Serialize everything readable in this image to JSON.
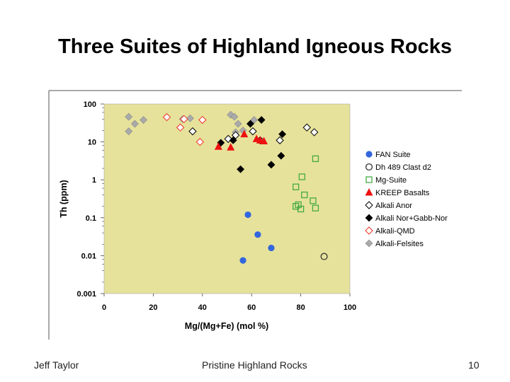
{
  "slide": {
    "title": "Three Suites of Highland Igneous Rocks",
    "footer_left": "Jeff Taylor",
    "footer_center": "Pristine Highland Rocks",
    "footer_right": "10"
  },
  "colors": {
    "plot_background": "#E6E29B",
    "blue": "#3366DD",
    "green": "#44AA44",
    "red": "#EE1111",
    "gray": "#AAAAAA",
    "black": "#000000"
  },
  "chart_data": {
    "type": "scatter",
    "xlabel": "Mg/(Mg+Fe) (mol %)",
    "ylabel": "Th (ppm)",
    "xlim": [
      0,
      100
    ],
    "ylim": [
      0.001,
      100
    ],
    "y_scale": "log",
    "x_ticks": [
      "0",
      "20",
      "40",
      "60",
      "80",
      "100"
    ],
    "y_ticks": [
      "100",
      "10",
      "1",
      "0.1",
      "0.01",
      "0.001"
    ],
    "grid": false,
    "legend_position": "right",
    "series": [
      {
        "name": "FAN Suite",
        "marker": "circle-filled",
        "color": "#3366DD",
        "points": [
          [
            58.5,
            0.12
          ],
          [
            62.5,
            0.036
          ],
          [
            68,
            0.016
          ],
          [
            56.5,
            0.0075
          ]
        ]
      },
      {
        "name": "Dh 489 Clast d2",
        "marker": "circle-open",
        "color": "#333333",
        "points": [
          [
            89.5,
            0.0095
          ]
        ]
      },
      {
        "name": "Mg-Suite",
        "marker": "square-open",
        "color": "#44AA44",
        "points": [
          [
            86,
            3.6
          ],
          [
            80.5,
            1.2
          ],
          [
            78,
            0.65
          ],
          [
            81.5,
            0.4
          ],
          [
            86,
            0.18
          ],
          [
            80,
            0.17
          ],
          [
            78,
            0.2
          ],
          [
            85,
            0.28
          ],
          [
            79,
            0.22
          ]
        ]
      },
      {
        "name": "KREEP Basalts",
        "marker": "triangle-filled",
        "color": "#EE1111",
        "points": [
          [
            46.5,
            7.5
          ],
          [
            51.5,
            7.2
          ],
          [
            57,
            16
          ],
          [
            62,
            12
          ],
          [
            63.5,
            11
          ],
          [
            65,
            10.5
          ]
        ]
      },
      {
        "name": "Alkali Anor",
        "marker": "diamond-open",
        "color": "#000000",
        "points": [
          [
            36,
            19
          ],
          [
            50.5,
            12
          ],
          [
            53.5,
            15
          ],
          [
            60.5,
            19
          ],
          [
            63.5,
            11
          ],
          [
            71.5,
            11
          ],
          [
            82.5,
            24
          ],
          [
            85.5,
            18
          ]
        ]
      },
      {
        "name": "Alkali Nor+Gabb-Nor",
        "marker": "diamond-filled",
        "color": "#000000",
        "points": [
          [
            47.5,
            9.5
          ],
          [
            52.5,
            11
          ],
          [
            55.5,
            1.9
          ],
          [
            59.5,
            30
          ],
          [
            64,
            38
          ],
          [
            72.5,
            16
          ],
          [
            72,
            4.3
          ],
          [
            68,
            2.5
          ]
        ]
      },
      {
        "name": "Alkali-QMD",
        "marker": "diamond-open",
        "color": "#EE3322",
        "points": [
          [
            25.5,
            45
          ],
          [
            31,
            24
          ],
          [
            32.5,
            40
          ],
          [
            40,
            38
          ],
          [
            39,
            10
          ]
        ]
      },
      {
        "name": "Alkali-Felsites",
        "marker": "diamond-filled",
        "color": "#AAAAAA",
        "points": [
          [
            10,
            46
          ],
          [
            12.5,
            30
          ],
          [
            16,
            38
          ],
          [
            10,
            19
          ],
          [
            32,
            40
          ],
          [
            35,
            42
          ],
          [
            51.5,
            52
          ],
          [
            53,
            46
          ],
          [
            54.5,
            30
          ],
          [
            56.5,
            20
          ],
          [
            53.5,
            18
          ],
          [
            61,
            38
          ]
        ]
      }
    ]
  }
}
